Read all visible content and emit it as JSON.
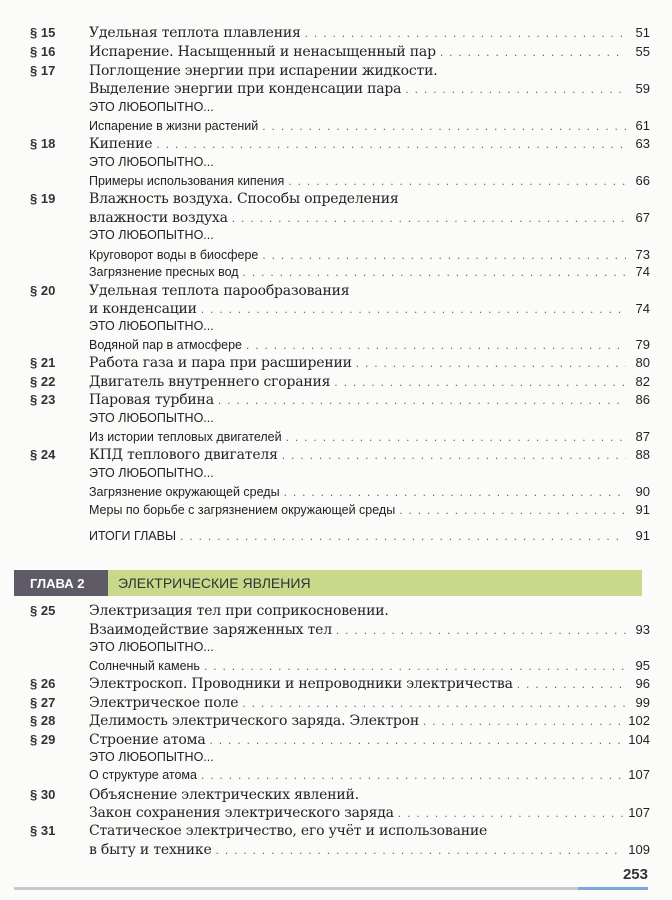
{
  "chapter1_lines": [
    {
      "kind": "sec",
      "num": "§ 15",
      "text": "Удельная теплота плавления",
      "page": "51"
    },
    {
      "kind": "sec",
      "num": "§ 16",
      "text": "Испарение. Насыщенный и ненасыщенный пар",
      "page": "55"
    },
    {
      "kind": "sec",
      "num": "§ 17",
      "text": "Поглощение энергии при испарении жидкости.",
      "page": ""
    },
    {
      "kind": "sec",
      "num": "",
      "text": "Выделение энергии при конденсации пара",
      "page": "59"
    },
    {
      "kind": "sub",
      "num": "",
      "text": "ЭТО ЛЮБОПЫТНО...",
      "page": ""
    },
    {
      "kind": "sub",
      "num": "",
      "text": "Испарение в жизни растений",
      "page": "61"
    },
    {
      "kind": "sec",
      "num": "§ 18",
      "text": "Кипение",
      "page": "63"
    },
    {
      "kind": "sub",
      "num": "",
      "text": "ЭТО ЛЮБОПЫТНО...",
      "page": ""
    },
    {
      "kind": "sub",
      "num": "",
      "text": "Примеры использования кипения",
      "page": "66"
    },
    {
      "kind": "sec",
      "num": "§ 19",
      "text": "Влажность воздуха. Способы определения",
      "page": ""
    },
    {
      "kind": "sec",
      "num": "",
      "text": "влажности воздуха",
      "page": "67"
    },
    {
      "kind": "sub",
      "num": "",
      "text": "ЭТО ЛЮБОПЫТНО...",
      "page": ""
    },
    {
      "kind": "sub",
      "num": "",
      "text": "Круговорот воды в биосфере",
      "page": "73"
    },
    {
      "kind": "sub",
      "num": "",
      "text": "Загрязнение пресных вод",
      "page": "74"
    },
    {
      "kind": "sec",
      "num": "§ 20",
      "text": "Удельная теплота парообразования",
      "page": ""
    },
    {
      "kind": "sec",
      "num": "",
      "text": "и конденсации",
      "page": "74"
    },
    {
      "kind": "sub",
      "num": "",
      "text": "ЭТО ЛЮБОПЫТНО...",
      "page": ""
    },
    {
      "kind": "sub",
      "num": "",
      "text": "Водяной пар в атмосфере",
      "page": "79"
    },
    {
      "kind": "sec",
      "num": "§ 21",
      "text": "Работа газа и пара при расширении",
      "page": "80"
    },
    {
      "kind": "sec",
      "num": "§ 22",
      "text": "Двигатель внутреннего сгорания",
      "page": "82"
    },
    {
      "kind": "sec",
      "num": "§ 23",
      "text": "Паровая турбина",
      "page": "86"
    },
    {
      "kind": "sub",
      "num": "",
      "text": "ЭТО ЛЮБОПЫТНО...",
      "page": ""
    },
    {
      "kind": "sub",
      "num": "",
      "text": "Из истории тепловых двигателей",
      "page": "87"
    },
    {
      "kind": "sec",
      "num": "§ 24",
      "text": "КПД теплового двигателя",
      "page": "88"
    },
    {
      "kind": "sub",
      "num": "",
      "text": "ЭТО ЛЮБОПЫТНО...",
      "page": ""
    },
    {
      "kind": "sub",
      "num": "",
      "text": "Загрязнение окружающей среды",
      "page": "90"
    },
    {
      "kind": "sub",
      "num": "",
      "text": "Меры по борьбе с загрязнением окружающей среды",
      "page": "91"
    },
    {
      "kind": "sub",
      "num": "",
      "text": "ИТОГИ ГЛАВЫ",
      "page": "91"
    }
  ],
  "chapter2": {
    "label": "ГЛАВА 2",
    "title": "ЭЛЕКТРИЧЕСКИЕ ЯВЛЕНИЯ",
    "label_color": "#5f5b66",
    "title_color": "#c8d98b"
  },
  "chapter2_lines": [
    {
      "kind": "sec",
      "num": "§ 25",
      "text": "Электризация тел при соприкосновении.",
      "page": ""
    },
    {
      "kind": "sec",
      "num": "",
      "text": "Взаимодействие заряженных тел",
      "page": "93"
    },
    {
      "kind": "sub",
      "num": "",
      "text": "ЭТО ЛЮБОПЫТНО...",
      "page": ""
    },
    {
      "kind": "sub",
      "num": "",
      "text": "Солнечный камень",
      "page": "95"
    },
    {
      "kind": "sec",
      "num": "§ 26",
      "text": "Электроскоп. Проводники и непроводники электричества",
      "page": "96"
    },
    {
      "kind": "sec",
      "num": "§ 27",
      "text": "Электрическое поле",
      "page": "99"
    },
    {
      "kind": "sec",
      "num": "§ 28",
      "text": "Делимость электрического заряда. Электрон",
      "page": "102"
    },
    {
      "kind": "sec",
      "num": "§ 29",
      "text": "Строение атома",
      "page": "104"
    },
    {
      "kind": "sub",
      "num": "",
      "text": "ЭТО ЛЮБОПЫТНО...",
      "page": ""
    },
    {
      "kind": "sub",
      "num": "",
      "text": "О структуре атома",
      "page": "107"
    },
    {
      "kind": "sec",
      "num": "§ 30",
      "text": "Объяснение электрических явлений.",
      "page": ""
    },
    {
      "kind": "sec",
      "num": "",
      "text": "Закон сохранения электрического заряда",
      "page": "107"
    },
    {
      "kind": "sec",
      "num": "§ 31",
      "text": "Статическое электричество, его учёт и использование",
      "page": ""
    },
    {
      "kind": "sec",
      "num": "",
      "text": "в быту и технике",
      "page": "109"
    }
  ],
  "page_number": "253"
}
